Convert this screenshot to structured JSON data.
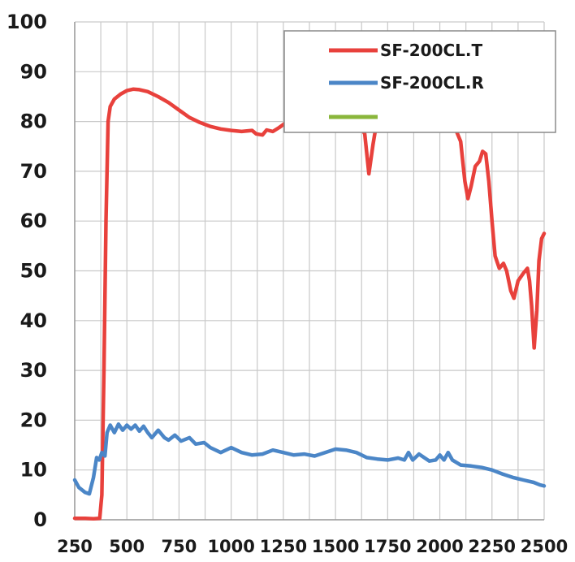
{
  "chart_data": {
    "type": "line",
    "title": "",
    "xlabel": "",
    "ylabel": "",
    "xlim": [
      250,
      2500
    ],
    "ylim": [
      0,
      100
    ],
    "x_ticks": [
      "250",
      "500",
      "750",
      "1000",
      "1250",
      "1500",
      "1750",
      "2000",
      "2250",
      "2500"
    ],
    "y_ticks": [
      "0",
      "10",
      "20",
      "30",
      "40",
      "50",
      "60",
      "70",
      "80",
      "90",
      "100"
    ],
    "grid": true,
    "legend_position": "top-right",
    "series": [
      {
        "name": "SF-200CL.T",
        "color": "#e8413c",
        "points": [
          [
            250,
            0.3
          ],
          [
            300,
            0.3
          ],
          [
            340,
            0.2
          ],
          [
            370,
            0.3
          ],
          [
            380,
            5
          ],
          [
            390,
            30
          ],
          [
            400,
            60
          ],
          [
            410,
            80
          ],
          [
            420,
            83
          ],
          [
            440,
            84.5
          ],
          [
            470,
            85.5
          ],
          [
            500,
            86.2
          ],
          [
            530,
            86.5
          ],
          [
            560,
            86.4
          ],
          [
            600,
            86.0
          ],
          [
            650,
            85.0
          ],
          [
            700,
            83.8
          ],
          [
            750,
            82.3
          ],
          [
            800,
            80.8
          ],
          [
            850,
            79.8
          ],
          [
            900,
            79.0
          ],
          [
            950,
            78.5
          ],
          [
            1000,
            78.2
          ],
          [
            1050,
            78.0
          ],
          [
            1100,
            78.2
          ],
          [
            1120,
            77.5
          ],
          [
            1150,
            77.3
          ],
          [
            1170,
            78.3
          ],
          [
            1200,
            78.0
          ],
          [
            1230,
            78.8
          ],
          [
            1260,
            79.7
          ],
          [
            1290,
            80.3
          ],
          [
            1600,
            80.5
          ],
          [
            1640,
            77.5
          ],
          [
            1660,
            69.5
          ],
          [
            1680,
            75.5
          ],
          [
            1700,
            80.5
          ],
          [
            2060,
            80.5
          ],
          [
            2080,
            78
          ],
          [
            2100,
            76
          ],
          [
            2120,
            68
          ],
          [
            2135,
            64.5
          ],
          [
            2150,
            67
          ],
          [
            2170,
            71
          ],
          [
            2190,
            72
          ],
          [
            2205,
            74
          ],
          [
            2220,
            73.5
          ],
          [
            2235,
            68
          ],
          [
            2250,
            60
          ],
          [
            2265,
            53
          ],
          [
            2285,
            50.5
          ],
          [
            2305,
            51.5
          ],
          [
            2320,
            50
          ],
          [
            2340,
            46
          ],
          [
            2355,
            44.5
          ],
          [
            2375,
            48
          ],
          [
            2400,
            49.5
          ],
          [
            2420,
            50.5
          ],
          [
            2430,
            48
          ],
          [
            2440,
            43
          ],
          [
            2452,
            34.5
          ],
          [
            2465,
            42
          ],
          [
            2475,
            52
          ],
          [
            2488,
            56.5
          ],
          [
            2500,
            57.5
          ]
        ]
      },
      {
        "name": "SF-200CL.R",
        "color": "#4b86c7",
        "points": [
          [
            250,
            8
          ],
          [
            270,
            6.5
          ],
          [
            300,
            5.5
          ],
          [
            320,
            5.2
          ],
          [
            340,
            8.5
          ],
          [
            355,
            12.5
          ],
          [
            368,
            12
          ],
          [
            380,
            13.5
          ],
          [
            395,
            12.8
          ],
          [
            405,
            17.5
          ],
          [
            420,
            19
          ],
          [
            440,
            17.5
          ],
          [
            460,
            19.2
          ],
          [
            480,
            18
          ],
          [
            500,
            19
          ],
          [
            520,
            18.2
          ],
          [
            540,
            19
          ],
          [
            560,
            17.8
          ],
          [
            580,
            18.8
          ],
          [
            600,
            17.5
          ],
          [
            620,
            16.5
          ],
          [
            650,
            18
          ],
          [
            680,
            16.5
          ],
          [
            700,
            16
          ],
          [
            730,
            17
          ],
          [
            760,
            15.8
          ],
          [
            800,
            16.5
          ],
          [
            830,
            15.2
          ],
          [
            870,
            15.5
          ],
          [
            900,
            14.5
          ],
          [
            950,
            13.5
          ],
          [
            1000,
            14.5
          ],
          [
            1050,
            13.5
          ],
          [
            1100,
            13.0
          ],
          [
            1150,
            13.2
          ],
          [
            1200,
            14.0
          ],
          [
            1250,
            13.5
          ],
          [
            1300,
            13.0
          ],
          [
            1350,
            13.2
          ],
          [
            1400,
            12.8
          ],
          [
            1450,
            13.5
          ],
          [
            1500,
            14.2
          ],
          [
            1550,
            14.0
          ],
          [
            1600,
            13.5
          ],
          [
            1650,
            12.5
          ],
          [
            1700,
            12.2
          ],
          [
            1750,
            12.0
          ],
          [
            1800,
            12.4
          ],
          [
            1830,
            12.0
          ],
          [
            1850,
            13.5
          ],
          [
            1870,
            12.0
          ],
          [
            1900,
            13.2
          ],
          [
            1950,
            11.8
          ],
          [
            1980,
            12.0
          ],
          [
            2000,
            13.0
          ],
          [
            2020,
            12.0
          ],
          [
            2040,
            13.5
          ],
          [
            2060,
            12.0
          ],
          [
            2100,
            11.0
          ],
          [
            2150,
            10.8
          ],
          [
            2200,
            10.5
          ],
          [
            2250,
            10.0
          ],
          [
            2300,
            9.2
          ],
          [
            2350,
            8.5
          ],
          [
            2400,
            8.0
          ],
          [
            2450,
            7.5
          ],
          [
            2480,
            7.0
          ],
          [
            2500,
            6.8
          ]
        ]
      },
      {
        "name": "",
        "color": "#8ab63b",
        "points": []
      }
    ]
  }
}
